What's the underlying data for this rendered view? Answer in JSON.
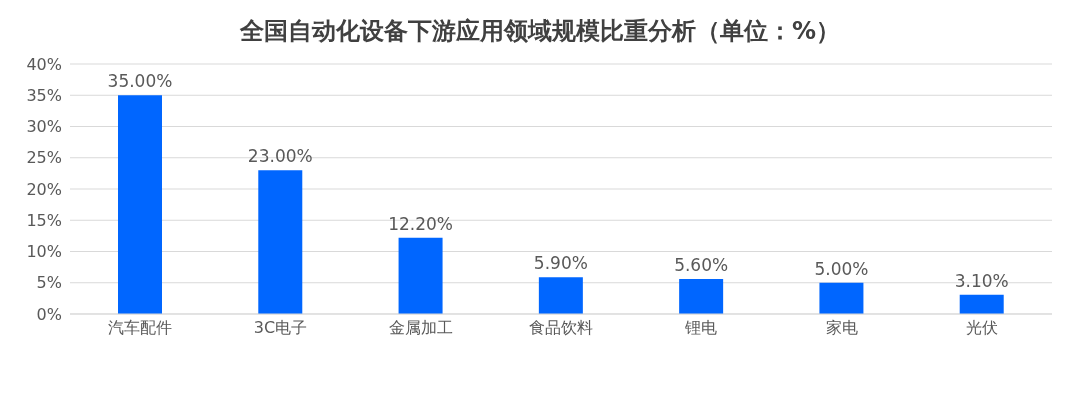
{
  "chart_data": {
    "type": "bar",
    "title": "全国自动化设备下游应用领域规模比重分析（单位：%）",
    "categories": [
      "汽车配件",
      "3C电子",
      "金属加工",
      "食品饮料",
      "锂电",
      "家电",
      "光伏"
    ],
    "values": [
      35,
      23,
      12.2,
      5.9,
      5.6,
      5,
      3.1
    ],
    "value_labels": [
      "35.00%",
      "23.00%",
      "12.20%",
      "5.90%",
      "5.60%",
      "5.00%",
      "3.10%"
    ],
    "color": "#0066ff",
    "ylim": [
      0,
      40
    ],
    "yticks": [
      {
        "value": 0,
        "label": "0%"
      },
      {
        "value": 5,
        "label": "5%"
      },
      {
        "value": 10,
        "label": "10%"
      },
      {
        "value": 15,
        "label": "15%"
      },
      {
        "value": 20,
        "label": "20%"
      },
      {
        "value": 25,
        "label": "25%"
      },
      {
        "value": 30,
        "label": "30%"
      },
      {
        "value": 35,
        "label": "35%"
      },
      {
        "value": 40,
        "label": "40%"
      }
    ],
    "grid": "y"
  }
}
